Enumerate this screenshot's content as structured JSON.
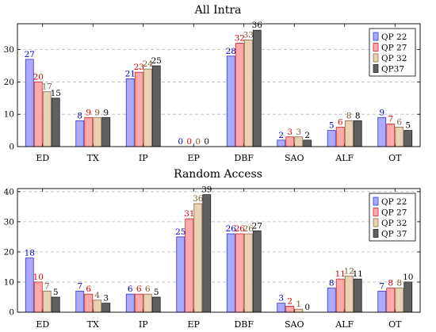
{
  "colors": {
    "series_fill": [
      "#aaaaff",
      "#ffaaaa",
      "#e8d2b4",
      "#606060"
    ],
    "series_stroke": [
      "#3333cc",
      "#cc2222",
      "#8a6a44",
      "#222222"
    ],
    "label_color": [
      "#0000cc",
      "#dd0000",
      "#7a5a30",
      "#000000"
    ]
  },
  "chart_data": [
    {
      "type": "bar",
      "title": "All Intra",
      "categories": [
        "ED",
        "TX",
        "IP",
        "EP",
        "DBF",
        "SAO",
        "ALF",
        "OT"
      ],
      "ylim": [
        0,
        38
      ],
      "yticks": [
        0,
        10,
        20,
        30
      ],
      "grid": "horizontal dashed",
      "legend_position": "top-right",
      "series": [
        {
          "name": "QP 22",
          "values": [
            27,
            8,
            21,
            0,
            28,
            2,
            5,
            9
          ]
        },
        {
          "name": "QP 27",
          "values": [
            20,
            9,
            23,
            0,
            32,
            3,
            6,
            7
          ]
        },
        {
          "name": "QP 32",
          "values": [
            17,
            9,
            24,
            0,
            33,
            3,
            8,
            6
          ]
        },
        {
          "name": "QP37",
          "values": [
            15,
            9,
            25,
            0,
            36,
            2,
            8,
            5
          ]
        }
      ]
    },
    {
      "type": "bar",
      "title": "Random Access",
      "categories": [
        "ED",
        "TX",
        "IP",
        "EP",
        "DBF",
        "SAO",
        "ALF",
        "OT"
      ],
      "ylim": [
        0,
        41
      ],
      "yticks": [
        0,
        10,
        20,
        30,
        40
      ],
      "grid": "horizontal dashed",
      "legend_position": "top-right",
      "series": [
        {
          "name": "QP 22",
          "values": [
            18,
            7,
            6,
            25,
            26,
            3,
            8,
            7
          ]
        },
        {
          "name": "QP 27",
          "values": [
            10,
            6,
            6,
            31,
            26,
            2,
            11,
            8
          ]
        },
        {
          "name": "QP 32",
          "values": [
            7,
            4,
            6,
            36,
            26,
            1,
            12,
            8
          ]
        },
        {
          "name": "QP 37",
          "values": [
            5,
            3,
            5,
            39,
            27,
            0,
            11,
            10
          ]
        }
      ]
    }
  ]
}
